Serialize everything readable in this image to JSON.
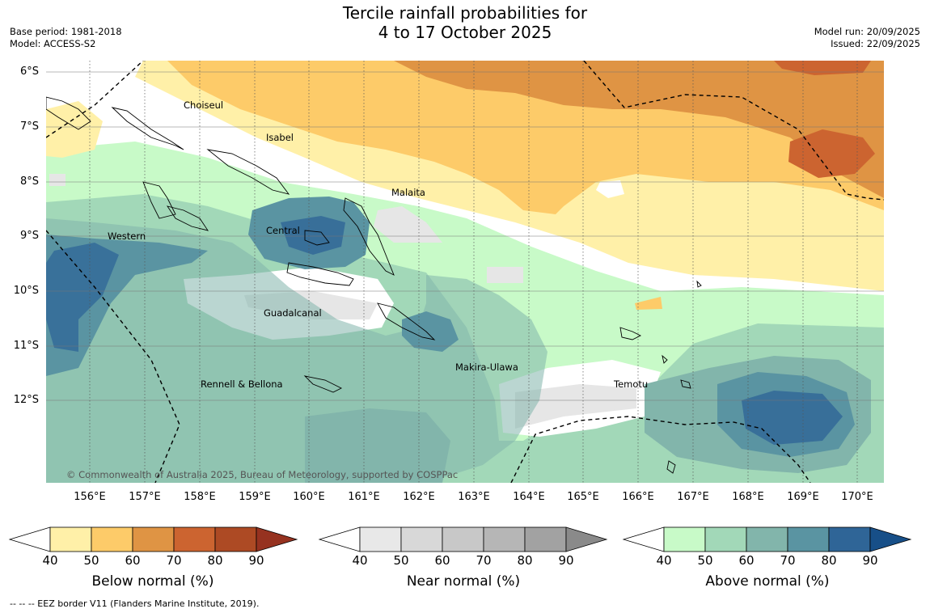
{
  "title": {
    "line1": "Tercile rainfall probabilities for",
    "line2": "4 to 17 October 2025"
  },
  "meta_left": {
    "base_period": "Base period: 1981-2018",
    "model": "Model: ACCESS-S2"
  },
  "meta_right": {
    "model_run": "Model run: 20/09/2025",
    "issued": "Issued: 22/09/2025"
  },
  "axes": {
    "lat_labels": [
      "6°S",
      "7°S",
      "8°S",
      "9°S",
      "10°S",
      "11°S",
      "12°S"
    ],
    "lon_labels": [
      "156°E",
      "157°E",
      "158°E",
      "159°E",
      "160°E",
      "161°E",
      "162°E",
      "163°E",
      "164°E",
      "165°E",
      "166°E",
      "167°E",
      "168°E",
      "169°E",
      "170°E"
    ]
  },
  "regions": {
    "choiseul": "Choiseul",
    "isabel": "Isabel",
    "malaita": "Malaita",
    "western": "Western",
    "central": "Central",
    "guadalcanal": "Guadalcanal",
    "makira": "Makira-Ulawa",
    "rennell": "Rennell & Bellona",
    "temotu": "Temotu"
  },
  "copyright": "© Commonwealth of Australia 2025, Bureau of Meteorology, supported by COSPPac",
  "colorbars": {
    "ticks": [
      "40",
      "50",
      "60",
      "70",
      "80",
      "90"
    ],
    "below": {
      "title": "Below normal (%)",
      "colors": [
        "#fff0a8",
        "#fdcb69",
        "#df9444",
        "#cc6430",
        "#ad4a24",
        "#963220"
      ]
    },
    "near": {
      "title": "Near normal (%)",
      "colors": [
        "#e8e8e8",
        "#d8d8d8",
        "#c8c8c8",
        "#b6b6b6",
        "#a2a2a2",
        "#8a8a8a"
      ]
    },
    "above": {
      "title": "Above normal (%)",
      "colors": [
        "#c8fac8",
        "#a2d8b8",
        "#82b5ab",
        "#5a94a2",
        "#2f6597",
        "#174f88"
      ]
    }
  },
  "eez_note": "--  --  -- EEZ border V11 (Flanders Marine Institute, 2019)."
}
